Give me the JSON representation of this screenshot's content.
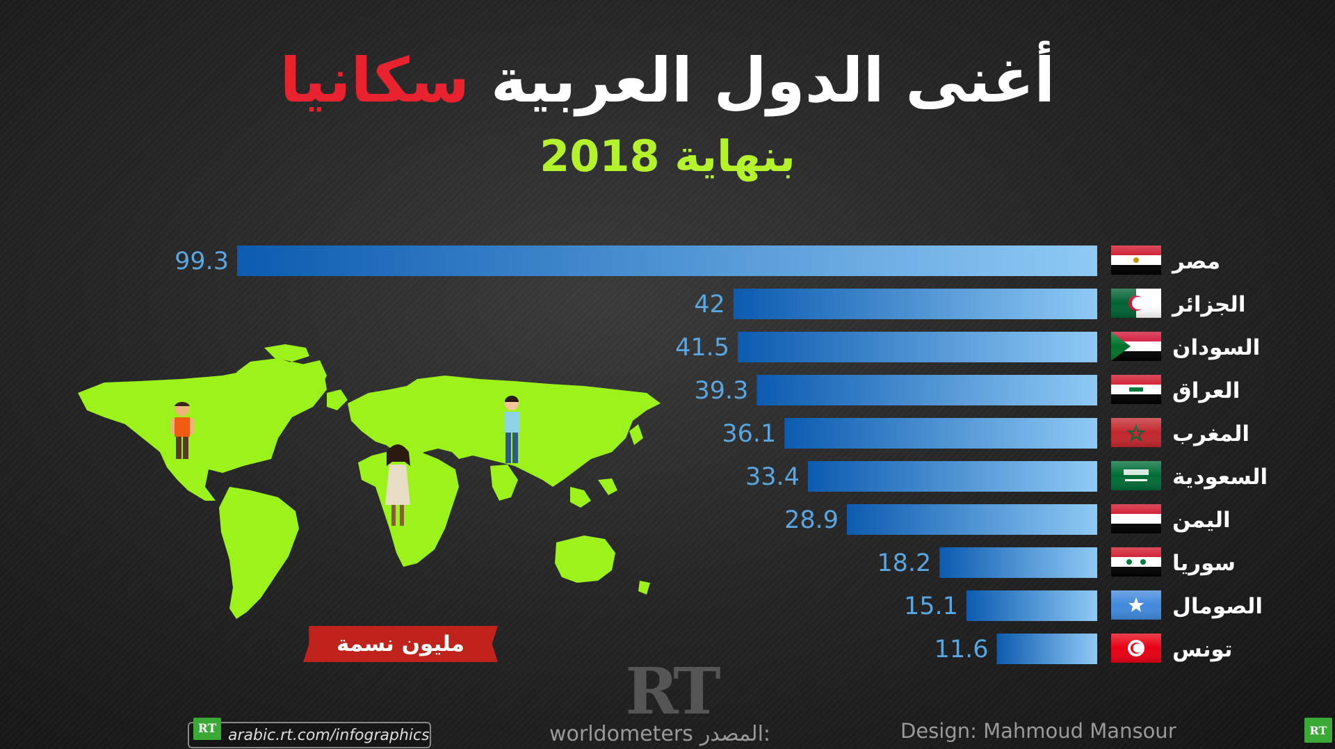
{
  "title": {
    "main": "أغنى الدول العربية",
    "accent": "سكانيا"
  },
  "subtitle": "بنهاية 2018",
  "unit_label": "مليون نسمة",
  "source": {
    "label": "المصدر:",
    "name": "worldometers"
  },
  "design_credit": "Design: Mahmoud Mansour",
  "url": "arabic.rt.com/infographics",
  "logo": "RT",
  "colors": {
    "title": "#ffffff",
    "accent": "#e8232f",
    "subtitle": "#b4f22c",
    "bar_start": "#0c5bb0",
    "bar_end": "#8fcaf5",
    "value_text": "#5aa6e0",
    "map": "#9cf21b",
    "ribbon": "#c0231c"
  },
  "chart_data": {
    "type": "bar",
    "orientation": "horizontal",
    "categories": [
      "مصر",
      "الجزائر",
      "السودان",
      "العراق",
      "المغرب",
      "السعودية",
      "اليمن",
      "سوريا",
      "الصومال",
      "تونس"
    ],
    "values": [
      99.3,
      42,
      41.5,
      39.3,
      36.1,
      33.4,
      28.9,
      18.2,
      15.1,
      11.6
    ],
    "value_labels": [
      "99.3",
      "42",
      "41.5",
      "39.3",
      "36.1",
      "33.4",
      "28.9",
      "18.2",
      "15.1",
      "11.6"
    ],
    "flags": [
      "egypt-flag-icon",
      "algeria-flag-icon",
      "sudan-flag-icon",
      "iraq-flag-icon",
      "morocco-flag-icon",
      "saudi-flag-icon",
      "yemen-flag-icon",
      "syria-flag-icon",
      "somalia-flag-icon",
      "tunisia-flag-icon"
    ],
    "unit": "مليون نسمة",
    "bar_direction": "right-to-left",
    "grid": false,
    "legend": "none"
  }
}
